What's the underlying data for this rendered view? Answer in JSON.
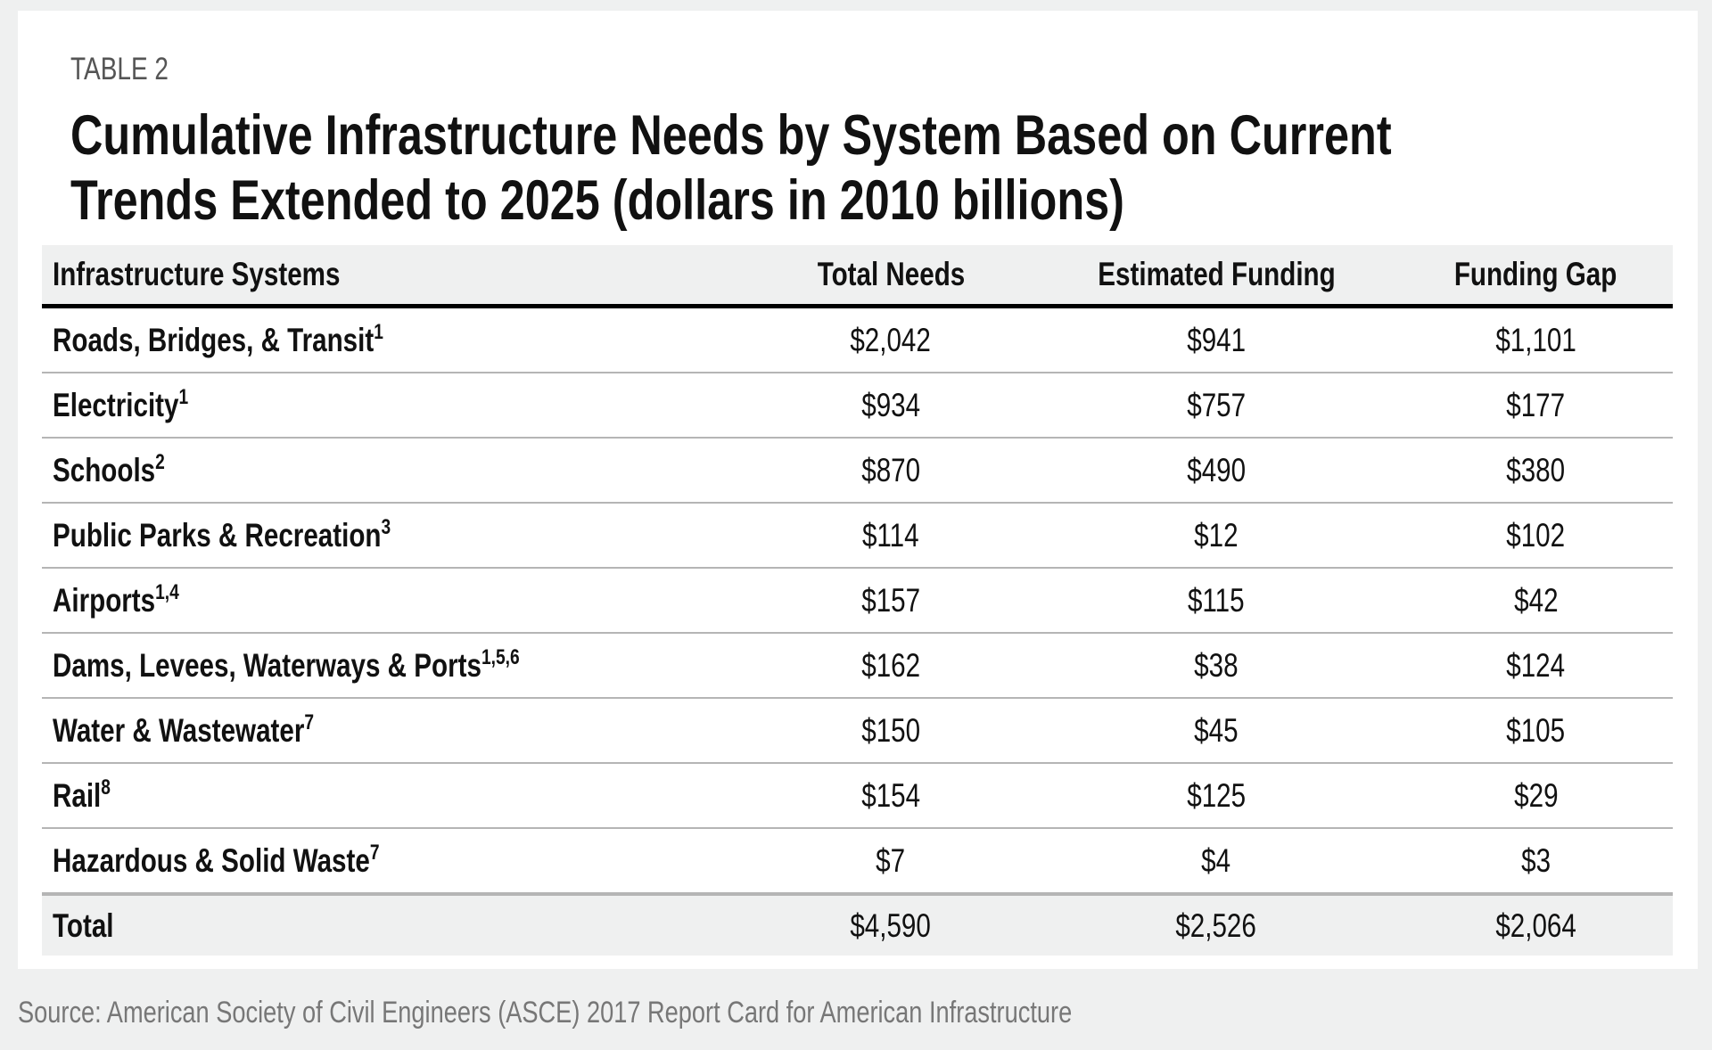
{
  "label": "TABLE 2",
  "title_line1": "Cumulative Infrastructure Needs by System Based on Current",
  "title_line2": "Trends Extended to 2025 (dollars in 2010 billions)",
  "columns": [
    "Infrastructure Systems",
    "Total Needs",
    "Estimated Funding",
    "Funding Gap"
  ],
  "rows": [
    {
      "system": "Roads, Bridges, & Transit",
      "note": "1",
      "total": "$2,042",
      "funding": "$941",
      "gap": "$1,101"
    },
    {
      "system": "Electricity",
      "note": "1",
      "total": "$934",
      "funding": "$757",
      "gap": "$177"
    },
    {
      "system": "Schools",
      "note": "2",
      "total": "$870",
      "funding": "$490",
      "gap": "$380"
    },
    {
      "system": "Public Parks & Recreation",
      "note": "3",
      "total": "$114",
      "funding": "$12",
      "gap": "$102"
    },
    {
      "system": "Airports",
      "note": "1,4",
      "total": "$157",
      "funding": "$115",
      "gap": "$42"
    },
    {
      "system": "Dams, Levees, Waterways & Ports",
      "note": "1,5,6",
      "total": "$162",
      "funding": "$38",
      "gap": "$124"
    },
    {
      "system": "Water & Wastewater",
      "note": "7",
      "total": "$150",
      "funding": "$45",
      "gap": "$105"
    },
    {
      "system": "Rail",
      "note": "8",
      "total": "$154",
      "funding": "$125",
      "gap": "$29"
    },
    {
      "system": "Hazardous & Solid Waste",
      "note": "7",
      "total": "$7",
      "funding": "$4",
      "gap": "$3"
    }
  ],
  "total_row": {
    "system": "Total",
    "total": "$4,590",
    "funding": "$2,526",
    "gap": "$2,064"
  },
  "source": "Source: American Society of Civil Engineers (ASCE) 2017 Report Card for American Infrastructure"
}
